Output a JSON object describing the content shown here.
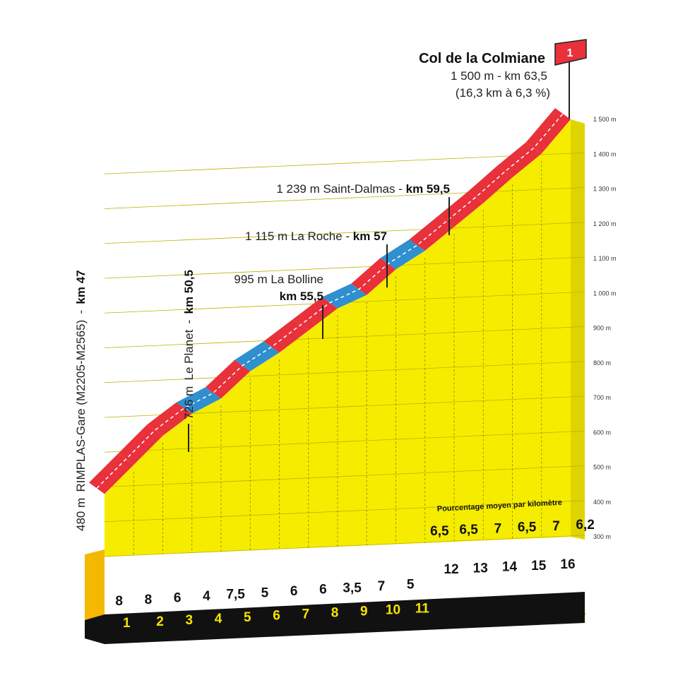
{
  "chart_data": {
    "type": "area",
    "xlabel": "",
    "ylabel": "",
    "ylim": [
      300,
      1500
    ],
    "y_ticks": [
      "300 m",
      "400 m",
      "500 m",
      "600 m",
      "700 m",
      "800 m",
      "900 m",
      "1 000 m",
      "1 100 m",
      "1 200 m",
      "1 300 m",
      "1 400 m",
      "1 500 m"
    ],
    "y_tick_values": [
      300,
      400,
      500,
      600,
      700,
      800,
      900,
      1000,
      1100,
      1200,
      1300,
      1400,
      1500
    ],
    "profile_km": [
      0,
      1,
      2,
      3,
      4,
      5,
      6,
      7,
      8,
      9,
      10,
      11,
      12,
      13,
      14,
      15,
      16
    ],
    "profile_alt": [
      480,
      560,
      640,
      700,
      740,
      815,
      865,
      925,
      985,
      1020,
      1090,
      1140,
      1205,
      1270,
      1340,
      1405,
      1500
    ],
    "easy_segments_km": [
      [
        3,
        4
      ],
      [
        5,
        6
      ],
      [
        8,
        9
      ],
      [
        10,
        11
      ]
    ],
    "km_labels": [
      "1",
      "2",
      "3",
      "4",
      "5",
      "6",
      "7",
      "8",
      "9",
      "10",
      "11",
      "12",
      "13",
      "14",
      "15",
      "16"
    ],
    "gradients_lower": [
      "8",
      "8",
      "6",
      "4",
      "7,5",
      "5",
      "6",
      "6",
      "3,5",
      "7",
      "5"
    ],
    "gradients_upper": [
      "6,5",
      "6,5",
      "7",
      "6,5",
      "7",
      "6,2"
    ],
    "gradient_caption": "Pourcentage moyen par kilomètre",
    "annotations": {
      "start": {
        "alt": "480 m",
        "name": "RIMPLAS-Gare (M2205-M2565)",
        "km": "km 47"
      },
      "planet": {
        "alt": "726 m",
        "name": "Le Planet",
        "km": "km 50,5"
      },
      "bolline": {
        "line1": "995 m La Bolline",
        "km": "km 55,5"
      },
      "roche": {
        "text": "1 115 m La Roche - ",
        "km": "km 57"
      },
      "dalmas": {
        "text": "1 239 m Saint-Dalmas - ",
        "km": "km 59,5"
      },
      "summit": {
        "name": "Col de la Colmiane",
        "line2": "1 500 m - km 63,5",
        "line3": "(16,3 km à 6,3 %)",
        "category": "1"
      }
    },
    "colors": {
      "fill": "#f5ec00",
      "front": "#f5b800",
      "climb": "#e8313a",
      "easy": "#2f8fcf",
      "base": "#111111",
      "grid": "#bdb200"
    }
  }
}
